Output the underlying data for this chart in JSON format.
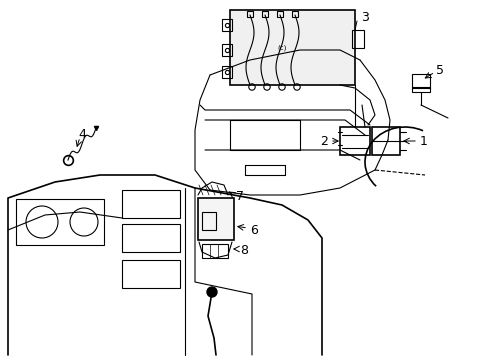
{
  "bg_color": "#ffffff",
  "line_color": "#000000",
  "line_width": 0.8,
  "fig_width": 4.89,
  "fig_height": 3.6,
  "dpi": 100,
  "font_size": 9
}
